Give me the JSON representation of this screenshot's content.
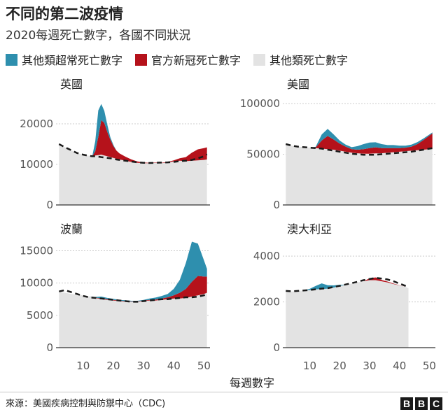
{
  "header": {
    "title": "不同的第二波疫情",
    "subtitle": "2020每週死亡數字，各國不同狀況"
  },
  "legend": [
    {
      "label": "其他類超常死亡數字",
      "color": "#2e8fae"
    },
    {
      "label": "官方新冠死亡數字",
      "color": "#b5121b"
    },
    {
      "label": "其他類死亡數字",
      "color": "#e3e3e3"
    }
  ],
  "x_axis_title": "每週數字",
  "colors": {
    "excess_other": "#2e8fae",
    "covid": "#b5121b",
    "other": "#e3e3e3",
    "baseline": "#1a1a1a",
    "axis_text": "#555555"
  },
  "footer": {
    "source": "來源：美國疾病控制與防禦中心（CDC)",
    "logo_letters": [
      "B",
      "B",
      "C"
    ]
  },
  "chart_data": [
    {
      "type": "area",
      "title": "英國",
      "xlim": [
        1,
        52
      ],
      "ylim": [
        0,
        25000
      ],
      "yticks": [
        "0",
        "10000",
        "20000"
      ],
      "ytick_values": [
        0,
        10000,
        20000
      ],
      "xticks": [],
      "series": [
        {
          "name": "其他類死亡數字",
          "x": [
            2,
            4,
            6,
            8,
            10,
            12,
            13,
            14,
            15,
            16,
            17,
            18,
            19,
            20,
            21,
            22,
            24,
            26,
            28,
            30,
            32,
            34,
            36,
            38,
            40,
            42,
            44,
            46,
            48,
            50,
            51
          ],
          "values": [
            15000,
            14200,
            13500,
            12800,
            12400,
            12100,
            12000,
            12200,
            12300,
            12400,
            12200,
            12000,
            11800,
            11600,
            11400,
            11200,
            10900,
            10600,
            10400,
            10300,
            10300,
            10400,
            10300,
            10500,
            10700,
            10900,
            10800,
            10900,
            11000,
            11100,
            11200
          ]
        },
        {
          "name": "官方新冠死亡數字",
          "x": [
            2,
            4,
            6,
            8,
            10,
            12,
            13,
            14,
            15,
            16,
            17,
            18,
            19,
            20,
            21,
            22,
            24,
            26,
            28,
            30,
            32,
            34,
            36,
            38,
            40,
            42,
            44,
            46,
            48,
            50,
            51
          ],
          "values": [
            0,
            0,
            0,
            0,
            0,
            0,
            0,
            1000,
            4500,
            8500,
            8000,
            6000,
            4300,
            2900,
            2000,
            1500,
            1000,
            600,
            300,
            150,
            100,
            80,
            80,
            120,
            300,
            600,
            1000,
            2000,
            2700,
            2900,
            3000
          ]
        },
        {
          "name": "其他類超常死亡數字",
          "x": [
            2,
            4,
            6,
            8,
            10,
            12,
            13,
            14,
            15,
            16,
            17,
            18,
            19,
            20,
            21,
            22,
            24,
            26,
            28,
            30,
            32,
            34,
            36,
            38,
            40,
            42,
            44,
            46,
            48,
            50,
            51
          ],
          "values": [
            0,
            0,
            0,
            0,
            0,
            0,
            0,
            2500,
            6500,
            4000,
            3000,
            1800,
            600,
            300,
            0,
            0,
            0,
            0,
            0,
            0,
            0,
            0,
            0,
            0,
            0,
            0,
            0,
            0,
            0,
            0,
            0
          ]
        },
        {
          "name": "baseline",
          "x": [
            2,
            4,
            6,
            8,
            10,
            12,
            13,
            14,
            15,
            16,
            17,
            18,
            19,
            20,
            21,
            22,
            24,
            26,
            28,
            30,
            32,
            34,
            36,
            38,
            40,
            42,
            44,
            46,
            48,
            50,
            51
          ],
          "values": [
            15000,
            14200,
            13500,
            12800,
            12400,
            12100,
            12000,
            12000,
            11900,
            11800,
            11700,
            11600,
            11500,
            11400,
            11200,
            11100,
            10900,
            10700,
            10500,
            10400,
            10350,
            10400,
            10450,
            10500,
            10600,
            10800,
            10900,
            11100,
            11500,
            12000,
            12500
          ]
        }
      ]
    },
    {
      "type": "area",
      "title": "美國",
      "xlim": [
        1,
        52
      ],
      "ylim": [
        0,
        100000
      ],
      "yticks": [
        "0",
        "50000",
        "100000"
      ],
      "ytick_values": [
        0,
        50000,
        100000
      ],
      "xticks": [],
      "series": [
        {
          "name": "其他類死亡數字",
          "x": [
            2,
            4,
            6,
            8,
            10,
            12,
            14,
            16,
            18,
            20,
            22,
            24,
            26,
            28,
            30,
            32,
            34,
            36,
            38,
            40,
            42,
            44,
            46,
            48,
            50,
            51
          ],
          "values": [
            60000,
            58500,
            57500,
            57000,
            56500,
            56000,
            55500,
            55000,
            54500,
            53500,
            52500,
            51500,
            51000,
            50500,
            50500,
            50800,
            51000,
            51500,
            52000,
            52500,
            53000,
            53500,
            54000,
            54500,
            55000,
            55500
          ]
        },
        {
          "name": "官方新冠死亡數字",
          "x": [
            2,
            4,
            6,
            8,
            10,
            12,
            14,
            16,
            18,
            20,
            22,
            24,
            26,
            28,
            30,
            32,
            34,
            36,
            38,
            40,
            42,
            44,
            46,
            48,
            50,
            51
          ],
          "values": [
            0,
            0,
            0,
            0,
            0,
            800,
            8000,
            13000,
            10000,
            7000,
            5000,
            3500,
            3500,
            4500,
            5500,
            6000,
            5000,
            4500,
            4000,
            3500,
            3500,
            4000,
            6000,
            9500,
            13500,
            15000
          ]
        },
        {
          "name": "其他類超常死亡數字",
          "x": [
            2,
            4,
            6,
            8,
            10,
            12,
            14,
            16,
            18,
            20,
            22,
            24,
            26,
            28,
            30,
            32,
            34,
            36,
            38,
            40,
            42,
            44,
            46,
            48,
            50,
            51
          ],
          "values": [
            0,
            0,
            0,
            0,
            0,
            500,
            6000,
            7000,
            5000,
            3000,
            2000,
            2000,
            3500,
            5000,
            5500,
            5000,
            4000,
            3000,
            3000,
            2500,
            2000,
            2000,
            2000,
            1500,
            1000,
            1000
          ]
        },
        {
          "name": "baseline",
          "x": [
            2,
            4,
            6,
            8,
            10,
            12,
            14,
            16,
            18,
            20,
            22,
            24,
            26,
            28,
            30,
            32,
            34,
            36,
            38,
            40,
            42,
            44,
            46,
            48,
            50,
            51
          ],
          "values": [
            60000,
            58500,
            57500,
            57000,
            56500,
            56000,
            55500,
            54500,
            53500,
            52500,
            51500,
            50500,
            50000,
            49500,
            49500,
            49500,
            50000,
            50500,
            51000,
            51500,
            52000,
            52500,
            53500,
            54500,
            55500,
            56000
          ]
        }
      ]
    },
    {
      "type": "area",
      "title": "波蘭",
      "xlim": [
        1,
        52
      ],
      "ylim": [
        0,
        17000
      ],
      "yticks": [
        "0",
        "5000",
        "10000",
        "15000"
      ],
      "ytick_values": [
        0,
        5000,
        10000,
        15000
      ],
      "xticks": [
        "10",
        "20",
        "30",
        "40",
        "50"
      ],
      "xtick_values": [
        10,
        20,
        30,
        40,
        50
      ],
      "series": [
        {
          "name": "其他類死亡數字",
          "x": [
            2,
            4,
            6,
            8,
            10,
            12,
            14,
            16,
            18,
            20,
            22,
            24,
            26,
            28,
            30,
            32,
            34,
            36,
            38,
            40,
            42,
            44,
            46,
            48,
            50,
            51
          ],
          "values": [
            8600,
            8500,
            8300,
            8200,
            8100,
            7900,
            7700,
            7500,
            7400,
            7300,
            7200,
            7100,
            7100,
            7100,
            7200,
            7300,
            7300,
            7400,
            7500,
            7600,
            7600,
            7700,
            7900,
            8100,
            8300,
            8500
          ]
        },
        {
          "name": "官方新冠死亡數字",
          "x": [
            2,
            4,
            6,
            8,
            10,
            12,
            14,
            16,
            18,
            20,
            22,
            24,
            26,
            28,
            30,
            32,
            34,
            36,
            38,
            40,
            42,
            44,
            46,
            48,
            50,
            51
          ],
          "values": [
            0,
            0,
            0,
            0,
            0,
            0,
            50,
            100,
            100,
            100,
            80,
            80,
            60,
            60,
            80,
            100,
            150,
            200,
            300,
            500,
            900,
            1400,
            2300,
            3000,
            2700,
            2500
          ]
        },
        {
          "name": "其他類超常死亡數字",
          "x": [
            2,
            4,
            6,
            8,
            10,
            12,
            14,
            16,
            18,
            20,
            22,
            24,
            26,
            28,
            30,
            32,
            34,
            36,
            38,
            40,
            42,
            44,
            46,
            48,
            50,
            51
          ],
          "values": [
            0,
            0,
            0,
            0,
            0,
            0,
            100,
            300,
            200,
            150,
            100,
            150,
            100,
            100,
            100,
            200,
            300,
            400,
            500,
            1000,
            2000,
            4000,
            6200,
            5000,
            2500,
            1200
          ]
        },
        {
          "name": "baseline",
          "x": [
            2,
            4,
            6,
            8,
            10,
            12,
            14,
            16,
            18,
            20,
            22,
            24,
            26,
            28,
            30,
            32,
            34,
            36,
            38,
            40,
            42,
            44,
            46,
            48,
            50,
            51
          ],
          "values": [
            8700,
            8900,
            8600,
            8300,
            8000,
            7800,
            7700,
            7600,
            7500,
            7400,
            7300,
            7200,
            7100,
            7100,
            7200,
            7300,
            7400,
            7500,
            7500,
            7600,
            7700,
            7800,
            7800,
            7900,
            8100,
            8300
          ]
        }
      ]
    },
    {
      "type": "area",
      "title": "澳大利亞",
      "xlim": [
        1,
        52
      ],
      "ylim": [
        0,
        4800
      ],
      "yticks": [
        "0",
        "2000",
        "4000"
      ],
      "ytick_values": [
        0,
        2000,
        4000
      ],
      "xticks": [
        "10",
        "20",
        "30",
        "40",
        "50"
      ],
      "xtick_values": [
        10,
        20,
        30,
        40,
        50
      ],
      "series": [
        {
          "name": "其他類死亡數字",
          "x": [
            2,
            4,
            6,
            8,
            10,
            12,
            14,
            16,
            18,
            20,
            22,
            24,
            26,
            28,
            30,
            32,
            34,
            36,
            38,
            40,
            42,
            43
          ],
          "values": [
            2450,
            2450,
            2480,
            2500,
            2520,
            2550,
            2560,
            2580,
            2620,
            2700,
            2750,
            2800,
            2850,
            2900,
            2950,
            2950,
            2900,
            2850,
            2780,
            2720,
            2650,
            2600
          ]
        },
        {
          "name": "官方新冠死亡數字",
          "x": [
            2,
            4,
            6,
            8,
            10,
            12,
            14,
            16,
            18,
            20,
            22,
            24,
            26,
            28,
            30,
            32,
            34,
            36,
            38,
            40,
            42,
            43
          ],
          "values": [
            0,
            0,
            0,
            0,
            0,
            0,
            0,
            0,
            0,
            0,
            0,
            0,
            0,
            0,
            80,
            120,
            60,
            40,
            20,
            10,
            0,
            0
          ]
        },
        {
          "name": "其他類超常死亡數字",
          "x": [
            2,
            4,
            6,
            8,
            10,
            12,
            14,
            16,
            18,
            20,
            22,
            24,
            26,
            28,
            30,
            32,
            34,
            36,
            38,
            40,
            42,
            43
          ],
          "values": [
            0,
            0,
            0,
            0,
            50,
            150,
            250,
            150,
            100,
            50,
            0,
            0,
            0,
            0,
            0,
            0,
            0,
            0,
            0,
            0,
            0,
            0
          ]
        },
        {
          "name": "baseline",
          "x": [
            2,
            4,
            6,
            8,
            10,
            12,
            14,
            16,
            18,
            20,
            22,
            24,
            26,
            28,
            30,
            32,
            34,
            36,
            38,
            40,
            42,
            43
          ],
          "values": [
            2480,
            2460,
            2480,
            2500,
            2520,
            2550,
            2580,
            2600,
            2650,
            2700,
            2760,
            2820,
            2880,
            2950,
            3000,
            3050,
            3020,
            2980,
            2900,
            2800,
            2700,
            2650
          ]
        }
      ]
    }
  ]
}
